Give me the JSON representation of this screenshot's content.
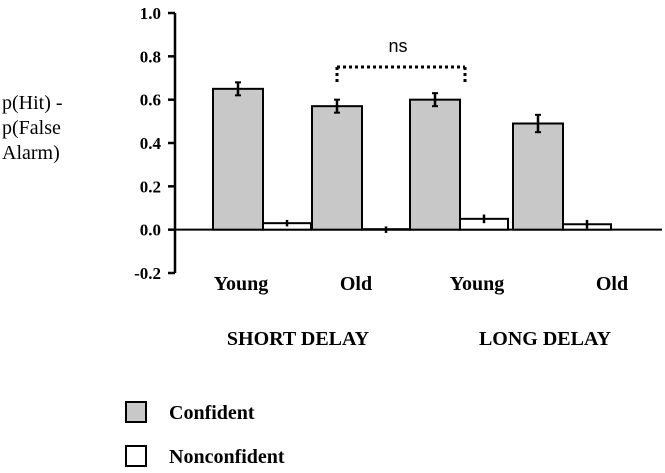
{
  "chart_data": {
    "type": "bar",
    "ylabel_lines": [
      "p(Hit) -",
      "p(False",
      "Alarm)"
    ],
    "yticks": [
      "1.0",
      "0.8",
      "0.6",
      "0.4",
      "0.2",
      "0.0",
      "-0.2"
    ],
    "ylim": [
      -0.2,
      1.0
    ],
    "categories": [
      "Young",
      "Old",
      "Young",
      "Old"
    ],
    "groups": [
      "SHORT DELAY",
      "LONG DELAY"
    ],
    "series": [
      {
        "name": "Confident",
        "color": "#c8c8c8",
        "values": [
          0.65,
          0.57,
          0.6,
          0.49
        ],
        "errors": [
          0.03,
          0.03,
          0.03,
          0.04
        ]
      },
      {
        "name": "Nonconfident",
        "color": "#ffffff",
        "values": [
          0.03,
          0.0,
          0.05,
          0.025
        ],
        "errors": [
          0.015,
          0.015,
          0.02,
          0.02
        ]
      }
    ],
    "annotation": {
      "text": "ns"
    },
    "legend_position": "bottom-left",
    "grid": false
  }
}
